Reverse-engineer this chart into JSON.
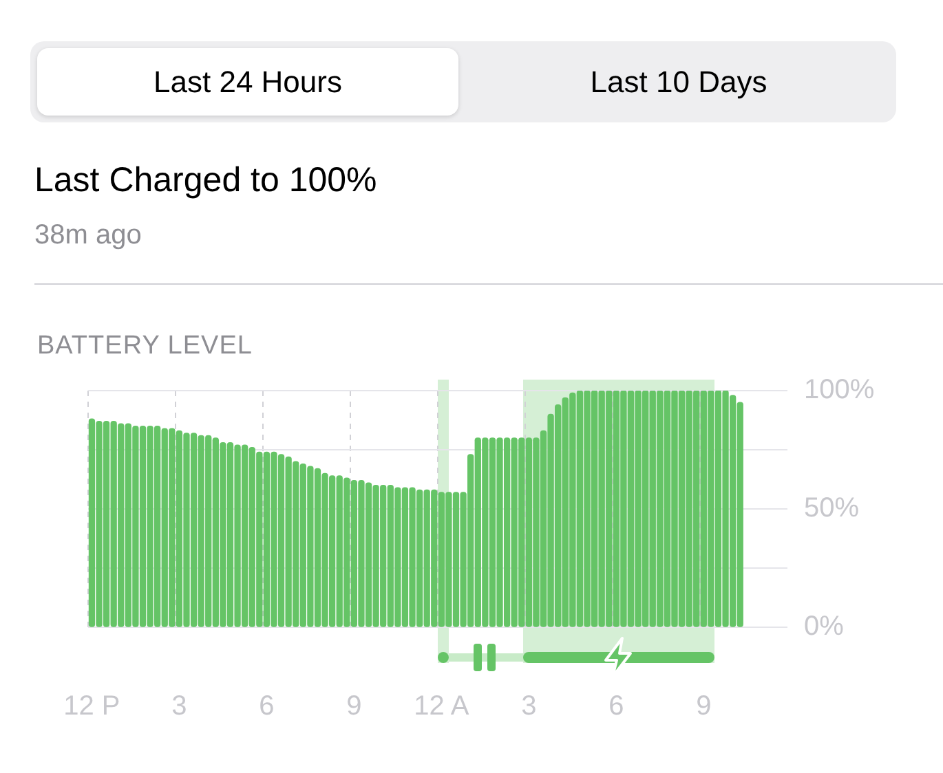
{
  "chart_data": {
    "type": "bar",
    "title": "Last Charged to 100%",
    "subtitle": "38m ago",
    "annotations": [
      "Last 24 Hours",
      "Last 10 Days",
      "BATTERY LEVEL"
    ],
    "categories": [
      "12 P",
      null,
      null,
      null,
      null,
      null,
      null,
      null,
      null,
      null,
      null,
      null,
      "3",
      null,
      null,
      null,
      null,
      null,
      null,
      null,
      null,
      null,
      null,
      null,
      "6",
      null,
      null,
      null,
      null,
      null,
      null,
      null,
      null,
      null,
      null,
      null,
      "9",
      null,
      null,
      null,
      null,
      null,
      null,
      null,
      null,
      null,
      null,
      null,
      "12 A",
      null,
      null,
      null,
      null,
      null,
      null,
      null,
      null,
      null,
      null,
      null,
      "3",
      null,
      null,
      null,
      null,
      null,
      null,
      null,
      null,
      null,
      null,
      null,
      "6",
      null,
      null,
      null,
      null,
      null,
      null,
      null,
      null,
      null,
      null,
      null,
      "9",
      null,
      null,
      null,
      null,
      null,
      null,
      null,
      null,
      null,
      null,
      null
    ],
    "values": [
      88,
      87,
      87,
      87,
      86,
      86,
      85,
      85,
      85,
      85,
      84,
      84,
      83,
      82,
      82,
      81,
      81,
      80,
      78,
      78,
      77,
      77,
      76,
      74,
      74,
      74,
      73,
      72,
      70,
      69,
      68,
      67,
      65,
      64,
      64,
      63,
      62,
      62,
      61,
      60,
      60,
      60,
      59,
      59,
      59,
      58,
      58,
      58,
      57,
      57,
      57,
      57,
      73,
      80,
      80,
      80,
      80,
      80,
      80,
      80,
      80,
      80,
      83,
      90,
      94,
      97,
      99,
      100,
      100,
      100,
      100,
      100,
      100,
      100,
      100,
      100,
      100,
      100,
      100,
      100,
      100,
      100,
      100,
      100,
      100,
      100,
      100,
      100,
      98,
      95,
      null,
      null,
      null,
      null,
      null,
      null
    ],
    "color": "#65c466",
    "ylim": [
      0,
      100
    ],
    "yticks": [
      {
        "value": 0,
        "label": "0%"
      },
      {
        "value": 25,
        "label": null
      },
      {
        "value": 50,
        "label": "50%"
      },
      {
        "value": 75,
        "label": null
      },
      {
        "value": 100,
        "label": "100%"
      }
    ],
    "grid": true
  }
}
